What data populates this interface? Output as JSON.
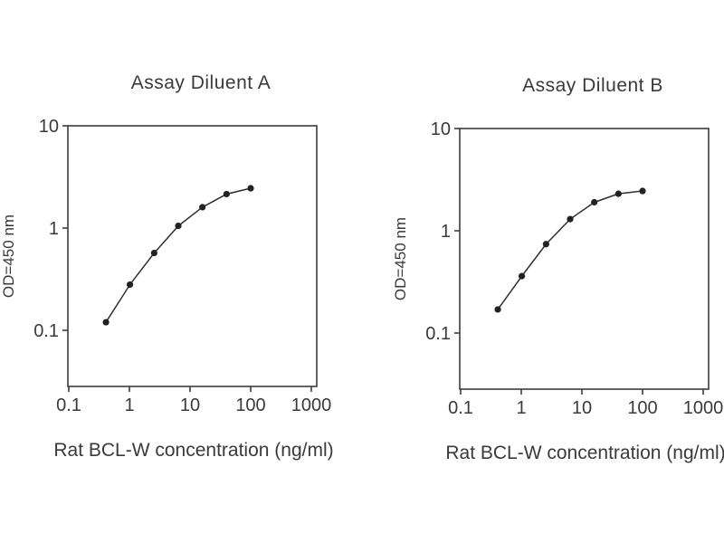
{
  "figure": {
    "background": "#ffffff",
    "description_colors": {
      "axis": "#3c3c3c",
      "curve_line": "#2e2e2e",
      "marker": "#222222",
      "text": "#3a3a3a"
    }
  },
  "chart_data": [
    {
      "type": "line",
      "title": "Assay Diluent A",
      "xlabel": "Rat BCL-W concentration (ng/ml)",
      "ylabel": "OD=450 nm",
      "x_scale": "log",
      "y_scale": "log",
      "x": [
        0.41,
        1.02,
        2.56,
        6.4,
        16,
        40,
        100
      ],
      "y": [
        0.12,
        0.28,
        0.57,
        1.05,
        1.6,
        2.15,
        2.45
      ],
      "xticks": [
        "0.1",
        "1",
        "10",
        "100",
        "1000"
      ],
      "yticks": [
        "10",
        "1",
        "0.1"
      ],
      "xlim": [
        0.1,
        1000
      ],
      "grid": false,
      "legend": null,
      "marker": "filled-circle"
    },
    {
      "type": "line",
      "title": "Assay Diluent B",
      "xlabel": "Rat BCL-W concentration (ng/ml)",
      "ylabel": "OD=450 nm",
      "x_scale": "log",
      "y_scale": "log",
      "x": [
        0.41,
        1.02,
        2.56,
        6.4,
        16,
        40,
        100
      ],
      "y": [
        0.17,
        0.36,
        0.74,
        1.3,
        1.9,
        2.3,
        2.45
      ],
      "xticks": [
        "0.1",
        "1",
        "10",
        "100",
        "1000"
      ],
      "yticks": [
        "10",
        "1",
        "0.1"
      ],
      "xlim": [
        0.1,
        1000
      ],
      "grid": false,
      "legend": null,
      "marker": "filled-circle"
    }
  ]
}
